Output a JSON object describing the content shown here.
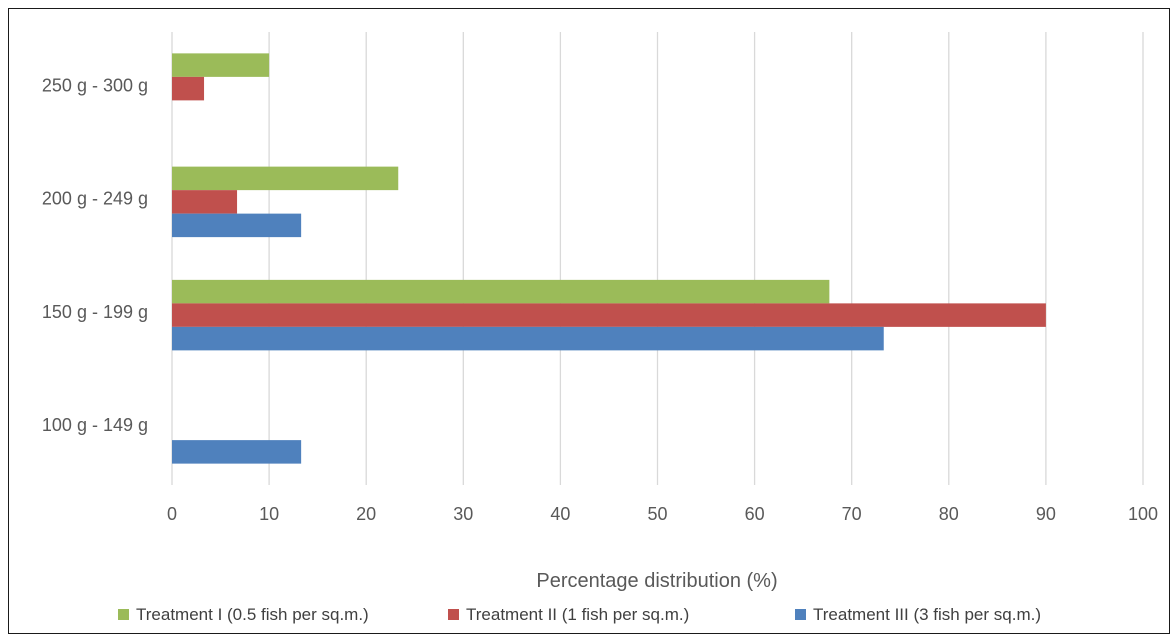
{
  "chart_data": {
    "type": "bar",
    "orientation": "horizontal",
    "title": "",
    "xlabel": "Percentage distribution (%)",
    "ylabel": "",
    "xlim": [
      0,
      100
    ],
    "x_ticks": [
      0,
      10,
      20,
      30,
      40,
      50,
      60,
      70,
      80,
      90,
      100
    ],
    "categories": [
      "100 g - 149 g",
      "150 g - 199 g",
      "200 g - 249 g",
      "250 g - 300 g"
    ],
    "series": [
      {
        "name": "Treatment I (0.5 fish per sq.m.)",
        "color": "#9bbb59",
        "values": [
          0,
          67.7,
          23.3,
          10
        ]
      },
      {
        "name": "Treatment II (1 fish per sq.m.)",
        "color": "#c0504d",
        "values": [
          0,
          90,
          6.7,
          3.3
        ]
      },
      {
        "name": "Treatment III (3 fish per sq.m.)",
        "color": "#4f81bd",
        "values": [
          13.3,
          73.3,
          13.3,
          0
        ]
      }
    ],
    "grid": "vertical",
    "legend_position": "bottom"
  }
}
